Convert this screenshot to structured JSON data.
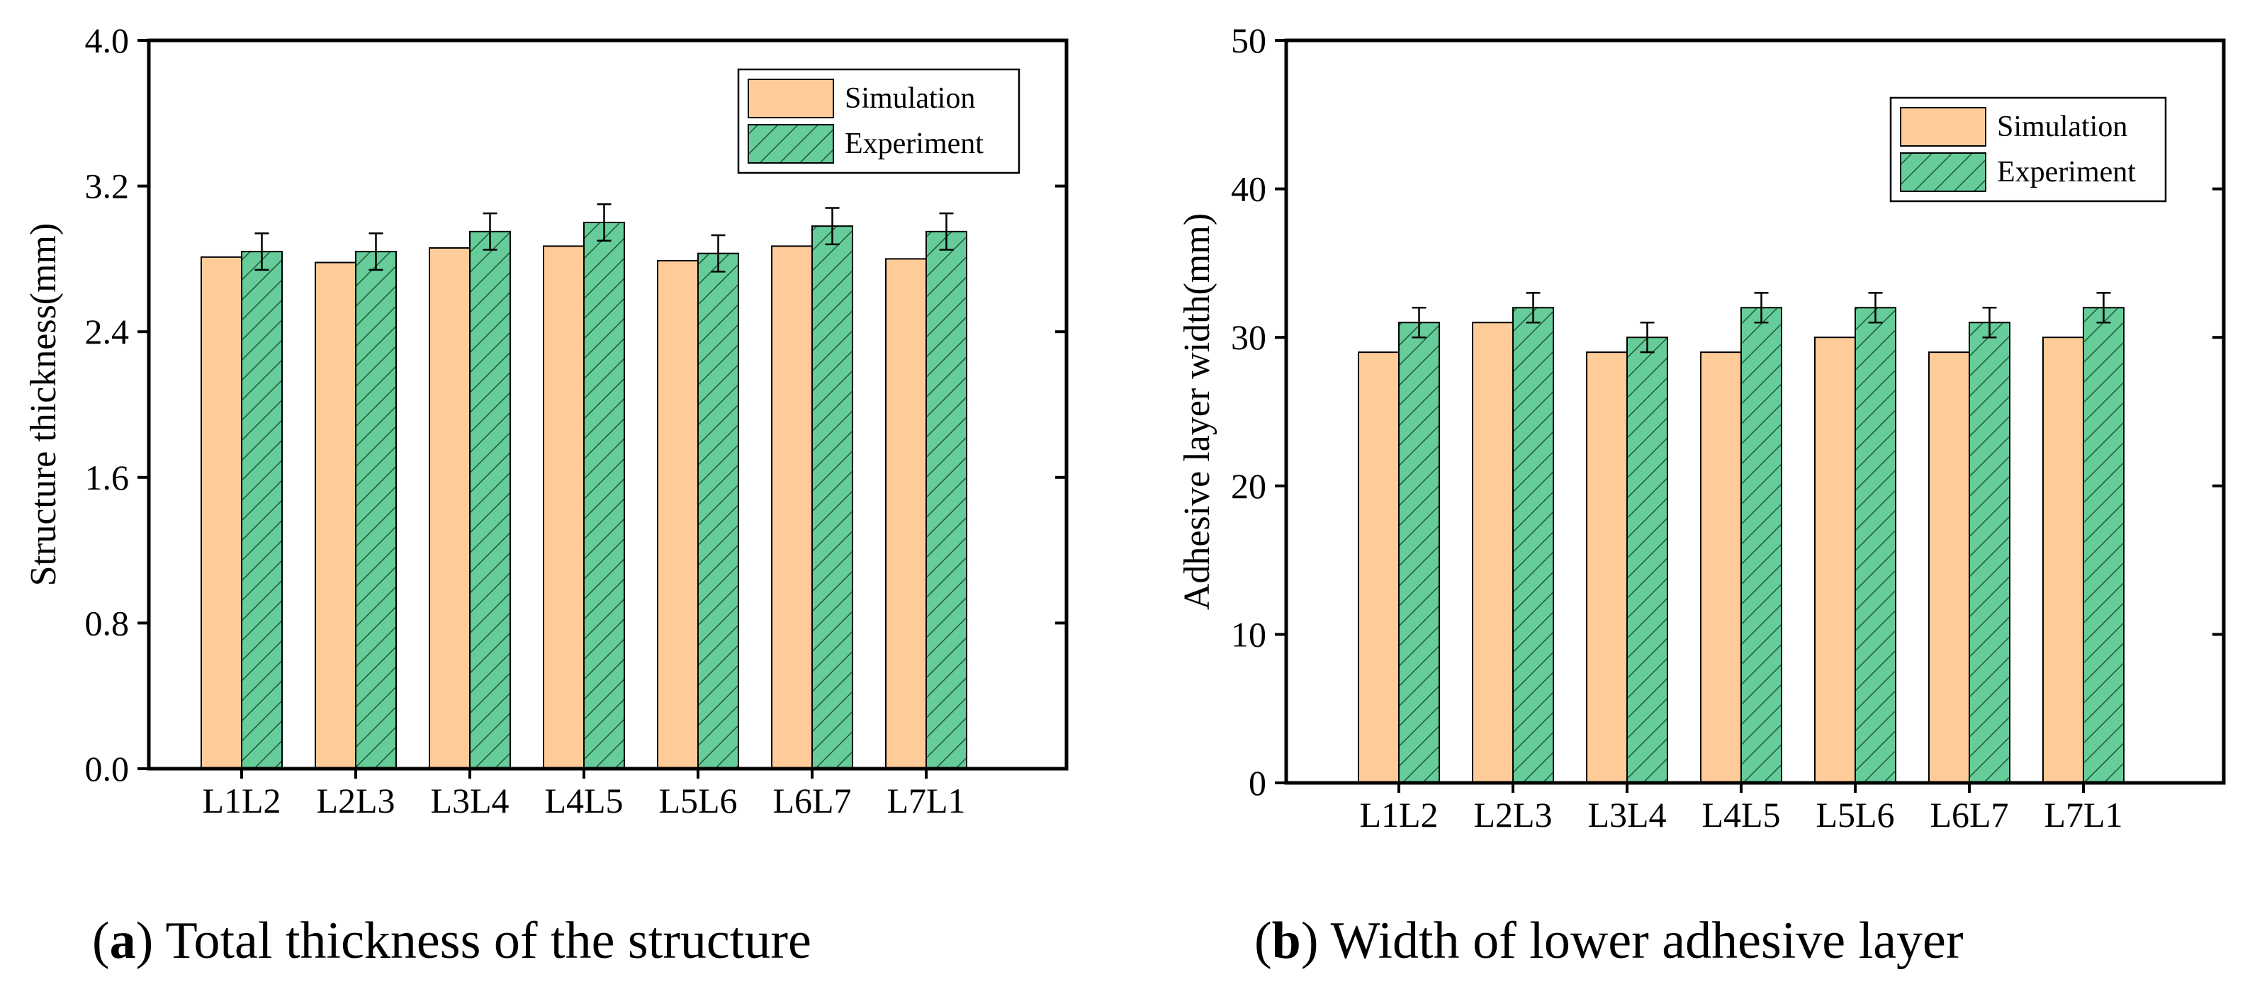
{
  "chart_data": [
    {
      "type": "bar",
      "panel_id": "a",
      "caption_prefix": "a",
      "caption_text": ") Total thickness of the structure",
      "ylabel": "Structure thickness(mm)",
      "xlabel": "",
      "ylim": [
        0,
        4.0
      ],
      "yticks": [
        "0.0",
        "0.8",
        "1.6",
        "2.4",
        "3.2",
        "4.0"
      ],
      "categories": [
        "L1L2",
        "L2L3",
        "L3L4",
        "L4L5",
        "L5L6",
        "L6L7",
        "L7L1"
      ],
      "series": [
        {
          "name": "Simulation",
          "color": "#FFCC99",
          "hatch": false,
          "values": [
            2.81,
            2.78,
            2.86,
            2.87,
            2.79,
            2.87,
            2.8
          ]
        },
        {
          "name": "Experiment",
          "color": "#66CC99",
          "hatch": true,
          "values": [
            2.84,
            2.84,
            2.95,
            3.0,
            2.83,
            2.98,
            2.95
          ],
          "errors": [
            0.1,
            0.1,
            0.1,
            0.1,
            0.1,
            0.1,
            0.1
          ]
        }
      ],
      "legend_position": "top-right"
    },
    {
      "type": "bar",
      "panel_id": "b",
      "caption_prefix": "b",
      "caption_text": ") Width of lower adhesive layer",
      "ylabel": "Adhesive layer width(mm)",
      "xlabel": "",
      "ylim": [
        0,
        50
      ],
      "yticks": [
        "0",
        "10",
        "20",
        "30",
        "40",
        "50"
      ],
      "categories": [
        "L1L2",
        "L2L3",
        "L3L4",
        "L4L5",
        "L5L6",
        "L6L7",
        "L7L1"
      ],
      "series": [
        {
          "name": "Simulation",
          "color": "#FFCC99",
          "hatch": false,
          "values": [
            29,
            31,
            29,
            29,
            30,
            29,
            30
          ]
        },
        {
          "name": "Experiment",
          "color": "#66CC99",
          "hatch": true,
          "values": [
            31,
            32,
            30,
            32,
            32,
            31,
            32
          ],
          "errors": [
            1.0,
            1.0,
            1.0,
            1.0,
            1.0,
            1.0,
            1.0
          ]
        }
      ],
      "legend_position": "top-right"
    }
  ]
}
